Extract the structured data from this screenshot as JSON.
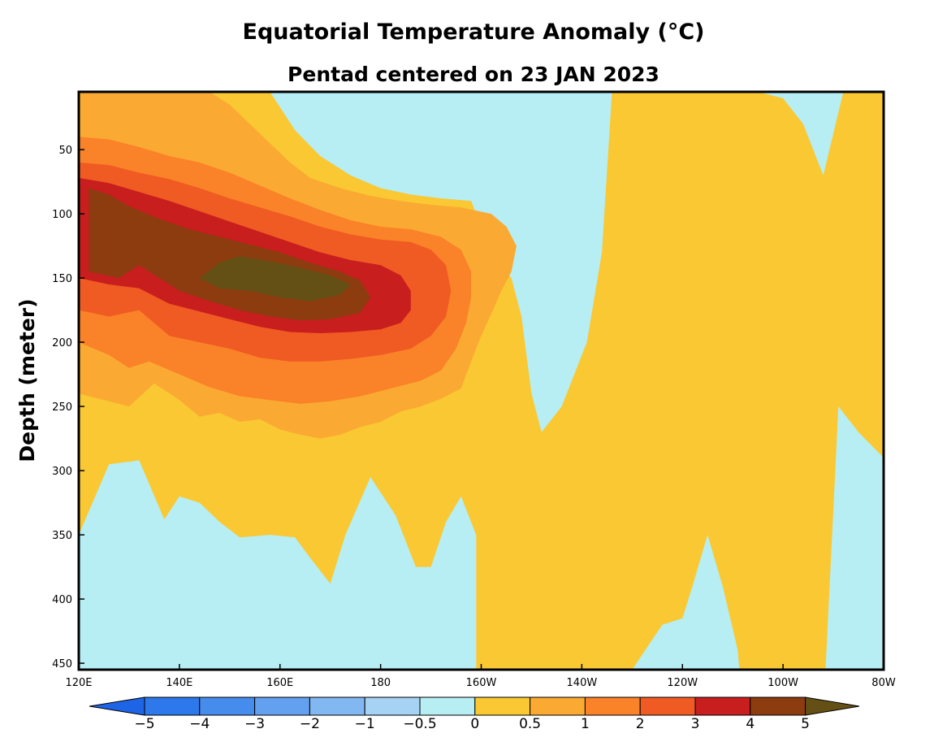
{
  "chart_data": {
    "type": "heatmap",
    "title": "Equatorial Temperature Anomaly (°C)",
    "subtitle": "Pentad centered on 23 JAN 2023",
    "xlabel": "",
    "ylabel": "Depth (meter)",
    "xlim": [
      120,
      280
    ],
    "ylim": [
      5,
      455
    ],
    "x_ticks": [
      {
        "value": 120,
        "label": "120E"
      },
      {
        "value": 140,
        "label": "140E"
      },
      {
        "value": 160,
        "label": "160E"
      },
      {
        "value": 180,
        "label": "180"
      },
      {
        "value": 200,
        "label": "160W"
      },
      {
        "value": 220,
        "label": "140W"
      },
      {
        "value": 240,
        "label": "120W"
      },
      {
        "value": 260,
        "label": "100W"
      },
      {
        "value": 280,
        "label": "80W"
      }
    ],
    "y_ticks": [
      {
        "value": 50,
        "label": "50"
      },
      {
        "value": 100,
        "label": "100"
      },
      {
        "value": 150,
        "label": "150"
      },
      {
        "value": 200,
        "label": "200"
      },
      {
        "value": 250,
        "label": "250"
      },
      {
        "value": 300,
        "label": "300"
      },
      {
        "value": 350,
        "label": "350"
      },
      {
        "value": 400,
        "label": "400"
      },
      {
        "value": 450,
        "label": "450"
      }
    ],
    "colorbar": {
      "levels": [
        -5,
        -4,
        -3,
        -2,
        -1,
        -0.5,
        0,
        0.5,
        1,
        2,
        3,
        4,
        5
      ],
      "labels": [
        "−5",
        "−4",
        "−3",
        "−2",
        "−1",
        "−0.5",
        "0",
        "0.5",
        "1",
        "2",
        "3",
        "4",
        "5"
      ],
      "colors": [
        "#1e64e6",
        "#2d78ea",
        "#468ced",
        "#64a0f0",
        "#82b8f2",
        "#a6d2f4",
        "#b6eef4",
        "#fac832",
        "#faaa32",
        "#fa8228",
        "#f05a23",
        "#c81e1e",
        "#8c3c0f",
        "#645014"
      ]
    },
    "field": {
      "description": "Depth-longitude section of equatorial ocean temperature anomaly",
      "contours": [
        {
          "level": 0,
          "polygon": [
            [
              120,
              350
            ],
            [
              126,
              295
            ],
            [
              132,
              292
            ],
            [
              137,
              338
            ],
            [
              140,
              320
            ],
            [
              144,
              325
            ],
            [
              148,
              340
            ],
            [
              152,
              352
            ],
            [
              158,
              350
            ],
            [
              163,
              352
            ],
            [
              166,
              368
            ],
            [
              170,
              388
            ],
            [
              173,
              350
            ],
            [
              178,
              305
            ],
            [
              183,
              335
            ],
            [
              187,
              375
            ],
            [
              190,
              375
            ],
            [
              193,
              340
            ],
            [
              196,
              320
            ],
            [
              199,
              350
            ],
            [
              199,
              490
            ],
            [
              228,
              490
            ],
            [
              230,
              455
            ],
            [
              236,
              420
            ],
            [
              240,
              415
            ],
            [
              242,
              390
            ],
            [
              245,
              350
            ],
            [
              248,
              390
            ],
            [
              251,
              440
            ],
            [
              252,
              490
            ],
            [
              268,
              490
            ],
            [
              271,
              250
            ],
            [
              275,
              270
            ],
            [
              280,
              290
            ],
            [
              280,
              5
            ],
            [
              272,
              5
            ],
            [
              268,
              70
            ],
            [
              264,
              30
            ],
            [
              260,
              10
            ],
            [
              255,
              5
            ],
            [
              226,
              5
            ],
            [
              224,
              130
            ],
            [
              221,
              200
            ],
            [
              216,
              250
            ],
            [
              212,
              270
            ],
            [
              210,
              240
            ],
            [
              208,
              180
            ],
            [
              206,
              150
            ],
            [
              202,
              130
            ],
            [
              198,
              90
            ],
            [
              192,
              88
            ],
            [
              186,
              85
            ],
            [
              180,
              80
            ],
            [
              174,
              70
            ],
            [
              168,
              55
            ],
            [
              163,
              35
            ],
            [
              158,
              5
            ],
            [
              120,
              5
            ]
          ]
        },
        {
          "level": 0.5,
          "polygon": [
            [
              120,
              240
            ],
            [
              125,
              245
            ],
            [
              130,
              250
            ],
            [
              135,
              232
            ],
            [
              140,
              245
            ],
            [
              144,
              258
            ],
            [
              148,
              255
            ],
            [
              152,
              262
            ],
            [
              156,
              260
            ],
            [
              160,
              268
            ],
            [
              164,
              272
            ],
            [
              168,
              275
            ],
            [
              172,
              272
            ],
            [
              176,
              266
            ],
            [
              180,
              262
            ],
            [
              184,
              254
            ],
            [
              188,
              250
            ],
            [
              192,
              244
            ],
            [
              196,
              236
            ],
            [
              198,
              215
            ],
            [
              200,
              195
            ],
            [
              202,
              178
            ],
            [
              204,
              160
            ],
            [
              206,
              145
            ],
            [
              207,
              125
            ],
            [
              205,
              110
            ],
            [
              202,
              100
            ],
            [
              196,
              95
            ],
            [
              190,
              93
            ],
            [
              184,
              90
            ],
            [
              178,
              86
            ],
            [
              172,
              80
            ],
            [
              166,
              72
            ],
            [
              162,
              60
            ],
            [
              158,
              45
            ],
            [
              154,
              30
            ],
            [
              150,
              15
            ],
            [
              146,
              5
            ],
            [
              120,
              5
            ]
          ]
        },
        {
          "level": 1,
          "polygon": [
            [
              120,
              200
            ],
            [
              126,
              210
            ],
            [
              130,
              220
            ],
            [
              134,
              215
            ],
            [
              140,
              225
            ],
            [
              146,
              235
            ],
            [
              152,
              242
            ],
            [
              158,
              245
            ],
            [
              164,
              248
            ],
            [
              170,
              246
            ],
            [
              176,
              242
            ],
            [
              182,
              236
            ],
            [
              188,
              230
            ],
            [
              192,
              222
            ],
            [
              195,
              205
            ],
            [
              197,
              185
            ],
            [
              198,
              165
            ],
            [
              198,
              145
            ],
            [
              196,
              128
            ],
            [
              192,
              118
            ],
            [
              186,
              112
            ],
            [
              180,
              110
            ],
            [
              174,
              105
            ],
            [
              168,
              97
            ],
            [
              162,
              88
            ],
            [
              156,
              78
            ],
            [
              150,
              68
            ],
            [
              144,
              60
            ],
            [
              138,
              55
            ],
            [
              132,
              48
            ],
            [
              126,
              42
            ],
            [
              120,
              40
            ]
          ]
        },
        {
          "level": 2,
          "polygon": [
            [
              120,
              175
            ],
            [
              126,
              180
            ],
            [
              132,
              175
            ],
            [
              138,
              195
            ],
            [
              144,
              200
            ],
            [
              150,
              205
            ],
            [
              156,
              212
            ],
            [
              162,
              215
            ],
            [
              168,
              215
            ],
            [
              174,
              213
            ],
            [
              180,
              210
            ],
            [
              186,
              205
            ],
            [
              190,
              195
            ],
            [
              193,
              180
            ],
            [
              194,
              160
            ],
            [
              193,
              140
            ],
            [
              190,
              128
            ],
            [
              186,
              122
            ],
            [
              180,
              120
            ],
            [
              174,
              116
            ],
            [
              168,
              110
            ],
            [
              162,
              102
            ],
            [
              156,
              95
            ],
            [
              150,
              88
            ],
            [
              144,
              80
            ],
            [
              138,
              73
            ],
            [
              132,
              68
            ],
            [
              126,
              62
            ],
            [
              120,
              60
            ]
          ]
        },
        {
          "level": 3,
          "polygon": [
            [
              120,
              150
            ],
            [
              126,
              155
            ],
            [
              132,
              158
            ],
            [
              138,
              170
            ],
            [
              144,
              176
            ],
            [
              150,
              182
            ],
            [
              156,
              188
            ],
            [
              162,
              192
            ],
            [
              168,
              193
            ],
            [
              174,
              192
            ],
            [
              180,
              190
            ],
            [
              184,
              185
            ],
            [
              186,
              175
            ],
            [
              186,
              160
            ],
            [
              184,
              148
            ],
            [
              180,
              140
            ],
            [
              174,
              136
            ],
            [
              168,
              130
            ],
            [
              162,
              122
            ],
            [
              156,
              114
            ],
            [
              150,
              106
            ],
            [
              144,
              98
            ],
            [
              138,
              90
            ],
            [
              132,
              83
            ],
            [
              126,
              76
            ],
            [
              120,
              72
            ]
          ]
        },
        {
          "level": 4,
          "polygon": [
            [
              122,
              145
            ],
            [
              128,
              150
            ],
            [
              132,
              140
            ],
            [
              136,
              150
            ],
            [
              140,
              160
            ],
            [
              146,
              168
            ],
            [
              152,
              175
            ],
            [
              158,
              180
            ],
            [
              164,
              183
            ],
            [
              170,
              182
            ],
            [
              176,
              177
            ],
            [
              178,
              165
            ],
            [
              176,
              152
            ],
            [
              172,
              145
            ],
            [
              166,
              138
            ],
            [
              160,
              130
            ],
            [
              154,
              124
            ],
            [
              148,
              118
            ],
            [
              142,
              112
            ],
            [
              136,
              104
            ],
            [
              130,
              94
            ],
            [
              126,
              85
            ],
            [
              122,
              80
            ]
          ]
        },
        {
          "level": 5,
          "polygon": [
            [
              144,
              150
            ],
            [
              148,
              158
            ],
            [
              154,
              160
            ],
            [
              160,
              165
            ],
            [
              166,
              168
            ],
            [
              172,
              163
            ],
            [
              174,
              155
            ],
            [
              170,
              148
            ],
            [
              164,
              142
            ],
            [
              158,
              137
            ],
            [
              152,
              133
            ],
            [
              148,
              138
            ]
          ]
        }
      ]
    }
  }
}
